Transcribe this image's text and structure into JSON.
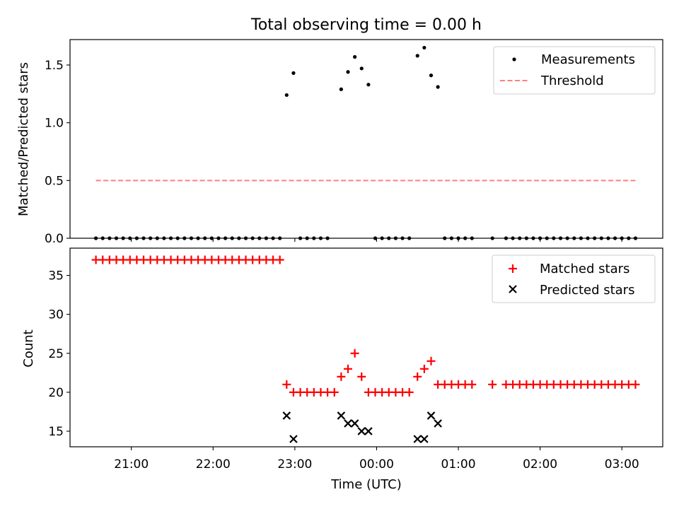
{
  "figure": {
    "title": "Total observing time = 0.00 h"
  },
  "chart_data": [
    {
      "type": "scatter",
      "ylabel": "Matched/Predicted stars",
      "xlabel": "",
      "ylim": [
        0,
        1.72
      ],
      "yticks": [
        0.0,
        0.5,
        1.0,
        1.5
      ],
      "ytick_labels": [
        "0.0",
        "0.5",
        "1.0",
        "1.5"
      ],
      "legend_position": "top-right",
      "legend": [
        "Measurements",
        "Threshold"
      ],
      "series": [
        {
          "name": "Measurements",
          "marker": "dot",
          "color": "#000000",
          "points": [
            [
              "20:34",
              0
            ],
            [
              "20:39",
              0
            ],
            [
              "20:44",
              0
            ],
            [
              "20:49",
              0
            ],
            [
              "20:54",
              0
            ],
            [
              "20:59",
              0
            ],
            [
              "21:04",
              0
            ],
            [
              "21:09",
              0
            ],
            [
              "21:14",
              0
            ],
            [
              "21:19",
              0
            ],
            [
              "21:24",
              0
            ],
            [
              "21:29",
              0
            ],
            [
              "21:34",
              0
            ],
            [
              "21:39",
              0
            ],
            [
              "21:44",
              0
            ],
            [
              "21:49",
              0
            ],
            [
              "21:54",
              0
            ],
            [
              "21:59",
              0
            ],
            [
              "22:04",
              0
            ],
            [
              "22:09",
              0
            ],
            [
              "22:14",
              0
            ],
            [
              "22:19",
              0
            ],
            [
              "22:24",
              0
            ],
            [
              "22:29",
              0
            ],
            [
              "22:34",
              0
            ],
            [
              "22:39",
              0
            ],
            [
              "22:44",
              0
            ],
            [
              "22:49",
              0
            ],
            [
              "22:54",
              1.24
            ],
            [
              "22:59",
              1.43
            ],
            [
              "23:04",
              0
            ],
            [
              "23:09",
              0
            ],
            [
              "23:14",
              0
            ],
            [
              "23:19",
              0
            ],
            [
              "23:24",
              0
            ],
            [
              "23:34",
              1.29
            ],
            [
              "23:39",
              1.44
            ],
            [
              "23:44",
              1.57
            ],
            [
              "23:49",
              1.47
            ],
            [
              "23:54",
              1.33
            ],
            [
              "23:59",
              0
            ],
            [
              "00:04",
              0
            ],
            [
              "00:09",
              0
            ],
            [
              "00:14",
              0
            ],
            [
              "00:19",
              0
            ],
            [
              "00:24",
              0
            ],
            [
              "00:30",
              1.58
            ],
            [
              "00:35",
              1.65
            ],
            [
              "00:40",
              1.41
            ],
            [
              "00:45",
              1.31
            ],
            [
              "00:50",
              0
            ],
            [
              "00:55",
              0
            ],
            [
              "01:00",
              0
            ],
            [
              "01:05",
              0
            ],
            [
              "01:10",
              0
            ],
            [
              "01:25",
              0
            ],
            [
              "01:35",
              0
            ],
            [
              "01:40",
              0
            ],
            [
              "01:45",
              0
            ],
            [
              "01:50",
              0
            ],
            [
              "01:55",
              0
            ],
            [
              "02:00",
              0
            ],
            [
              "02:05",
              0
            ],
            [
              "02:10",
              0
            ],
            [
              "02:15",
              0
            ],
            [
              "02:20",
              0
            ],
            [
              "02:25",
              0
            ],
            [
              "02:30",
              0
            ],
            [
              "02:35",
              0
            ],
            [
              "02:40",
              0
            ],
            [
              "02:45",
              0
            ],
            [
              "02:50",
              0
            ],
            [
              "02:55",
              0
            ],
            [
              "03:00",
              0
            ],
            [
              "03:05",
              0
            ],
            [
              "03:10",
              0
            ]
          ]
        },
        {
          "name": "Threshold",
          "type": "line",
          "style": "dashed",
          "color": "#ff7f7f",
          "points": [
            [
              "20:34",
              0.5
            ],
            [
              "03:10",
              0.5
            ]
          ]
        }
      ]
    },
    {
      "type": "scatter",
      "xlabel": "Time (UTC)",
      "ylabel": "Count",
      "ylim": [
        13,
        38.5
      ],
      "yticks": [
        15,
        20,
        25,
        30,
        35
      ],
      "ytick_labels": [
        "15",
        "20",
        "25",
        "30",
        "35"
      ],
      "xlim": [
        "20:15",
        "03:30"
      ],
      "xticks": [
        "21:00",
        "22:00",
        "23:00",
        "00:00",
        "01:00",
        "02:00",
        "03:00"
      ],
      "legend_position": "top-right",
      "legend": [
        "Matched stars",
        "Predicted stars"
      ],
      "series": [
        {
          "name": "Matched stars",
          "marker": "plus",
          "color": "#ff0000",
          "points": [
            [
              "20:34",
              37
            ],
            [
              "20:39",
              37
            ],
            [
              "20:44",
              37
            ],
            [
              "20:49",
              37
            ],
            [
              "20:54",
              37
            ],
            [
              "20:59",
              37
            ],
            [
              "21:04",
              37
            ],
            [
              "21:09",
              37
            ],
            [
              "21:14",
              37
            ],
            [
              "21:19",
              37
            ],
            [
              "21:24",
              37
            ],
            [
              "21:29",
              37
            ],
            [
              "21:34",
              37
            ],
            [
              "21:39",
              37
            ],
            [
              "21:44",
              37
            ],
            [
              "21:49",
              37
            ],
            [
              "21:54",
              37
            ],
            [
              "21:59",
              37
            ],
            [
              "22:04",
              37
            ],
            [
              "22:09",
              37
            ],
            [
              "22:14",
              37
            ],
            [
              "22:19",
              37
            ],
            [
              "22:24",
              37
            ],
            [
              "22:29",
              37
            ],
            [
              "22:34",
              37
            ],
            [
              "22:39",
              37
            ],
            [
              "22:44",
              37
            ],
            [
              "22:49",
              37
            ],
            [
              "22:54",
              21
            ],
            [
              "22:59",
              20
            ],
            [
              "23:04",
              20
            ],
            [
              "23:09",
              20
            ],
            [
              "23:14",
              20
            ],
            [
              "23:19",
              20
            ],
            [
              "23:24",
              20
            ],
            [
              "23:29",
              20
            ],
            [
              "23:34",
              22
            ],
            [
              "23:39",
              23
            ],
            [
              "23:44",
              25
            ],
            [
              "23:49",
              22
            ],
            [
              "23:54",
              20
            ],
            [
              "23:59",
              20
            ],
            [
              "00:04",
              20
            ],
            [
              "00:09",
              20
            ],
            [
              "00:14",
              20
            ],
            [
              "00:19",
              20
            ],
            [
              "00:24",
              20
            ],
            [
              "00:30",
              22
            ],
            [
              "00:35",
              23
            ],
            [
              "00:40",
              24
            ],
            [
              "00:45",
              21
            ],
            [
              "00:50",
              21
            ],
            [
              "00:55",
              21
            ],
            [
              "01:00",
              21
            ],
            [
              "01:05",
              21
            ],
            [
              "01:10",
              21
            ],
            [
              "01:25",
              21
            ],
            [
              "01:35",
              21
            ],
            [
              "01:40",
              21
            ],
            [
              "01:45",
              21
            ],
            [
              "01:50",
              21
            ],
            [
              "01:55",
              21
            ],
            [
              "02:00",
              21
            ],
            [
              "02:05",
              21
            ],
            [
              "02:10",
              21
            ],
            [
              "02:15",
              21
            ],
            [
              "02:20",
              21
            ],
            [
              "02:25",
              21
            ],
            [
              "02:30",
              21
            ],
            [
              "02:35",
              21
            ],
            [
              "02:40",
              21
            ],
            [
              "02:45",
              21
            ],
            [
              "02:50",
              21
            ],
            [
              "02:55",
              21
            ],
            [
              "03:00",
              21
            ],
            [
              "03:05",
              21
            ],
            [
              "03:10",
              21
            ]
          ]
        },
        {
          "name": "Predicted stars",
          "marker": "x",
          "color": "#000000",
          "points": [
            [
              "22:54",
              17
            ],
            [
              "22:59",
              14
            ],
            [
              "23:34",
              17
            ],
            [
              "23:39",
              16
            ],
            [
              "23:44",
              16
            ],
            [
              "23:49",
              15
            ],
            [
              "23:54",
              15
            ],
            [
              "00:30",
              14
            ],
            [
              "00:35",
              14
            ],
            [
              "00:40",
              17
            ],
            [
              "00:45",
              16
            ]
          ]
        }
      ]
    }
  ]
}
